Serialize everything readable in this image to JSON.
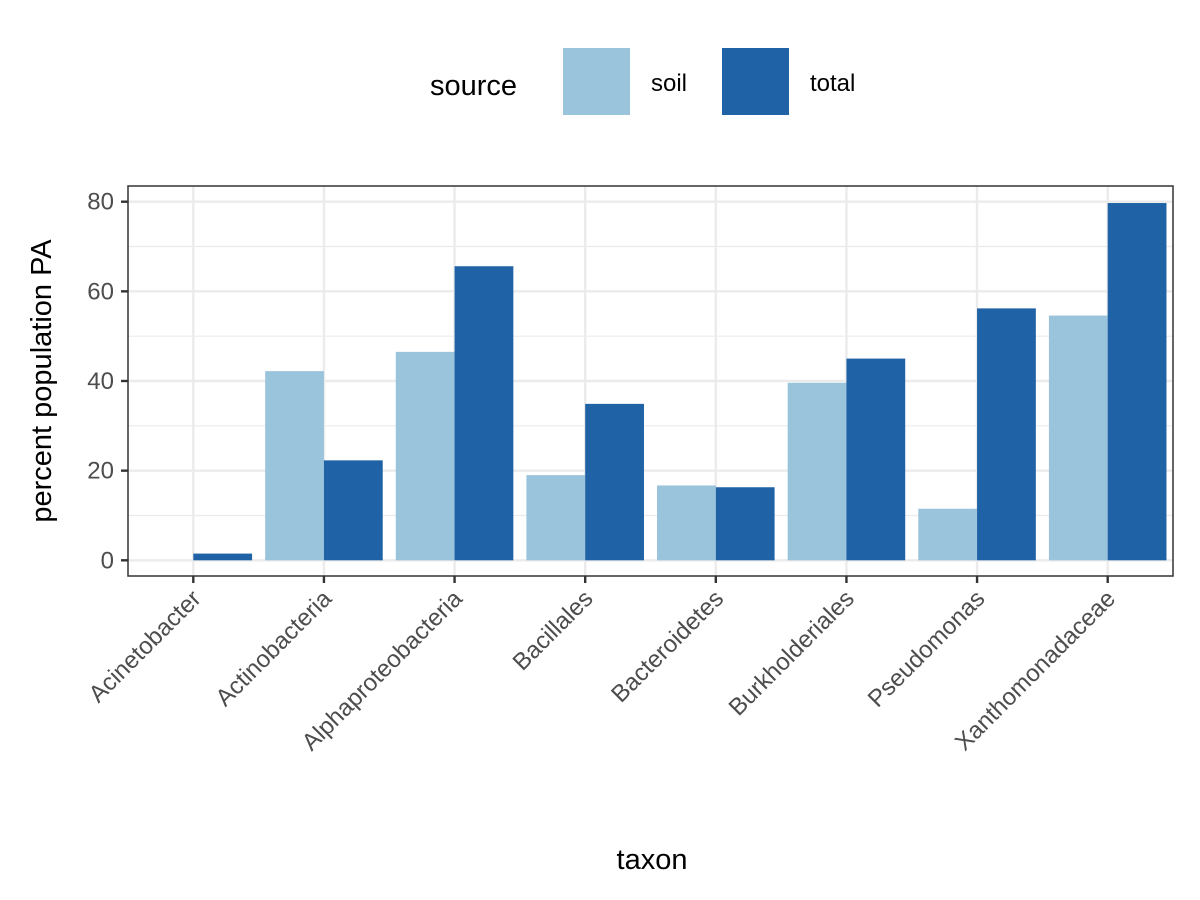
{
  "chart_data": {
    "type": "bar",
    "xlabel": "taxon",
    "ylabel": "percent population PA",
    "legend_title": "source",
    "legend_position": "top",
    "grid": true,
    "ylim": [
      -3.5,
      83.5
    ],
    "yticks": [
      0,
      20,
      40,
      60,
      80
    ],
    "categories": [
      "Acinetobacter",
      "Actinobacteria",
      "Alphaproteobacteria",
      "Bacillales",
      "Bacteroidetes",
      "Burkholderiales",
      "Pseudomonas",
      "Xanthomonadaceae"
    ],
    "series": [
      {
        "name": "soil",
        "color": "#9ac3dc",
        "values": [
          0,
          42.2,
          46.5,
          19.0,
          16.7,
          39.6,
          11.5,
          54.6
        ]
      },
      {
        "name": "total",
        "color": "#1f62a5",
        "values": [
          1.5,
          22.3,
          65.6,
          34.9,
          16.3,
          45.0,
          56.2,
          79.7
        ]
      }
    ]
  }
}
